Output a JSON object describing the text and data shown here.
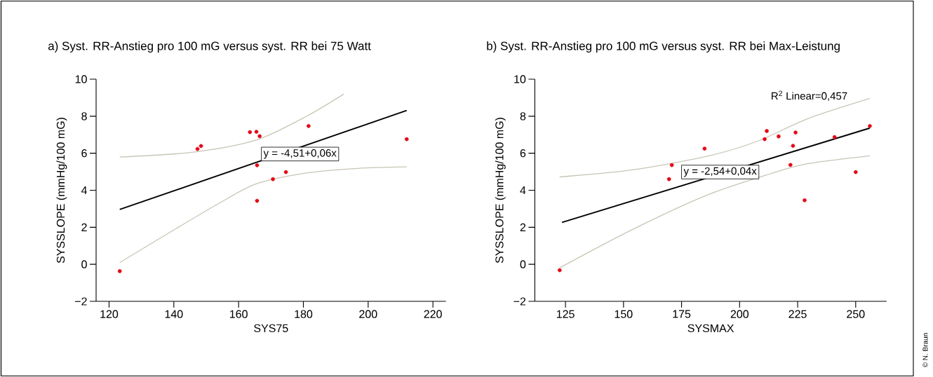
{
  "chart_data": [
    {
      "type": "scatter",
      "title": "a)  Syst. RR-Anstieg pro 100 mG versus syst. RR bei 75 Watt",
      "xlabel": "SYS75",
      "ylabel": "SYSSLOPE (mmHg/100 mG)",
      "xlim": [
        116,
        224
      ],
      "ylim": [
        -2,
        10
      ],
      "xticks": [
        120,
        140,
        160,
        180,
        200,
        220
      ],
      "yticks": [
        {
          "value": -2,
          "label": "−2"
        },
        0,
        2,
        4,
        6,
        8,
        10
      ],
      "series": [
        {
          "type": "line",
          "marker": "none",
          "color": "#c8c5b5",
          "x": [
            123.3,
            146.5,
            165.7,
            181.3,
            192.5
          ],
          "values": [
            5.79,
            6.07,
            6.73,
            8.03,
            9.2
          ]
        },
        {
          "type": "line",
          "marker": "none",
          "color": "#c8c5b5",
          "x": [
            123.3,
            138.8,
            154.2,
            165.7,
            181.3,
            196.7,
            211.9
          ],
          "values": [
            0.09,
            1.73,
            3.32,
            4.36,
            4.94,
            5.18,
            5.26
          ]
        },
        {
          "type": "line",
          "marker": "none",
          "color": "#000000",
          "x": [
            123.3,
            211.9
          ],
          "values": [
            2.96,
            8.31
          ]
        },
        {
          "color": "#e30a17",
          "x": [
            123.3,
            147.3,
            148.4,
            163.5,
            165.5,
            166.5,
            165.7,
            165.7,
            170.6,
            174.6,
            181.6,
            211.9
          ],
          "values": [
            -0.37,
            6.23,
            6.39,
            7.14,
            7.16,
            6.92,
            5.35,
            3.43,
            4.6,
            4.98,
            7.47,
            6.76
          ]
        }
      ],
      "annotations": [
        "y = -4,51+0,06x"
      ]
    },
    {
      "type": "scatter",
      "title": "b)  Syst. RR-Anstieg pro 100 mG versus syst. RR bei Max-Leistung",
      "xlabel": "SYSMAX",
      "ylabel": "SYSSLOPE (mmHg/100 mG)",
      "xlim": [
        111.8,
        263.3
      ],
      "ylim": [
        -2,
        10
      ],
      "xticks": [
        125,
        150,
        175,
        200,
        225,
        250
      ],
      "yticks": [
        {
          "value": -2,
          "label": "−2"
        },
        0,
        2,
        4,
        6,
        8,
        10
      ],
      "series": [
        {
          "type": "line",
          "marker": "none",
          "color": "#c8c5b5",
          "x": [
            122.5,
            153.2,
            185.8,
            207.5,
            229.2,
            256.1
          ],
          "values": [
            4.72,
            5.09,
            5.83,
            6.64,
            7.86,
            8.96
          ]
        },
        {
          "type": "line",
          "marker": "none",
          "color": "#c8c5b5",
          "x": [
            122.5,
            153.2,
            185.8,
            213.0,
            229.2,
            256.1
          ],
          "values": [
            -0.19,
            1.84,
            3.73,
            4.88,
            5.43,
            5.86
          ]
        },
        {
          "type": "line",
          "marker": "none",
          "color": "#000000",
          "x": [
            123.5,
            256.1
          ],
          "values": [
            2.26,
            7.36
          ]
        },
        {
          "color": "#e30a17",
          "x": [
            122.5,
            169.6,
            170.8,
            184.9,
            210.8,
            211.7,
            216.8,
            224.1,
            223.0,
            221.9,
            228.0,
            240.9,
            250.0,
            256.1
          ],
          "values": [
            -0.32,
            4.6,
            5.36,
            6.25,
            6.76,
            7.2,
            6.91,
            7.12,
            6.4,
            5.37,
            3.46,
            6.87,
            4.98,
            7.47
          ]
        }
      ],
      "annotations": [
        "y = -2,54+0,04x",
        "R$^{2}$ Linear=0,457",
        "© N. Braun"
      ]
    }
  ]
}
